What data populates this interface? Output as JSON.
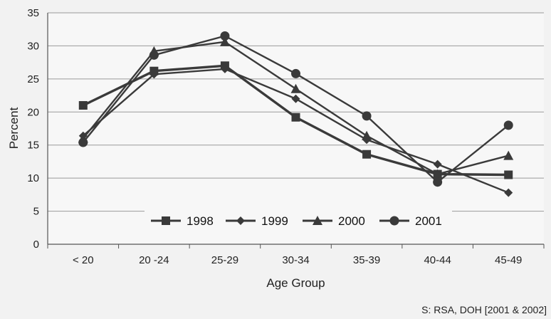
{
  "chart_data": {
    "type": "line",
    "xlabel": "Age Group",
    "ylabel": "Percent",
    "categories": [
      "< 20",
      "20 -24",
      "25-29",
      "30-34",
      "35-39",
      "40-44",
      "45-49"
    ],
    "ylim": [
      0,
      35
    ],
    "yticks": [
      0,
      5,
      10,
      15,
      20,
      25,
      30,
      35
    ],
    "grid": true,
    "legend_position": "bottom-center",
    "series": [
      {
        "name": "1998",
        "marker": "square",
        "values": [
          21.0,
          26.2,
          27.0,
          19.2,
          13.6,
          10.6,
          10.5
        ]
      },
      {
        "name": "1999",
        "marker": "diamond",
        "values": [
          16.4,
          25.7,
          26.5,
          22.0,
          15.8,
          12.1,
          7.8
        ]
      },
      {
        "name": "2000",
        "marker": "triangle",
        "values": [
          16.0,
          29.2,
          30.6,
          23.5,
          16.4,
          10.6,
          13.4
        ]
      },
      {
        "name": "2001",
        "marker": "circle",
        "values": [
          15.4,
          28.6,
          31.5,
          25.8,
          19.4,
          9.4,
          18.0
        ]
      }
    ],
    "colors": {
      "series": "#3a3a3a",
      "grid": "#9a9a9a",
      "plot_bg": "#f7f7f7",
      "page_bg": "#f2f2f2"
    }
  },
  "source_note": "S:  RSA, DOH [2001 & 2002]"
}
